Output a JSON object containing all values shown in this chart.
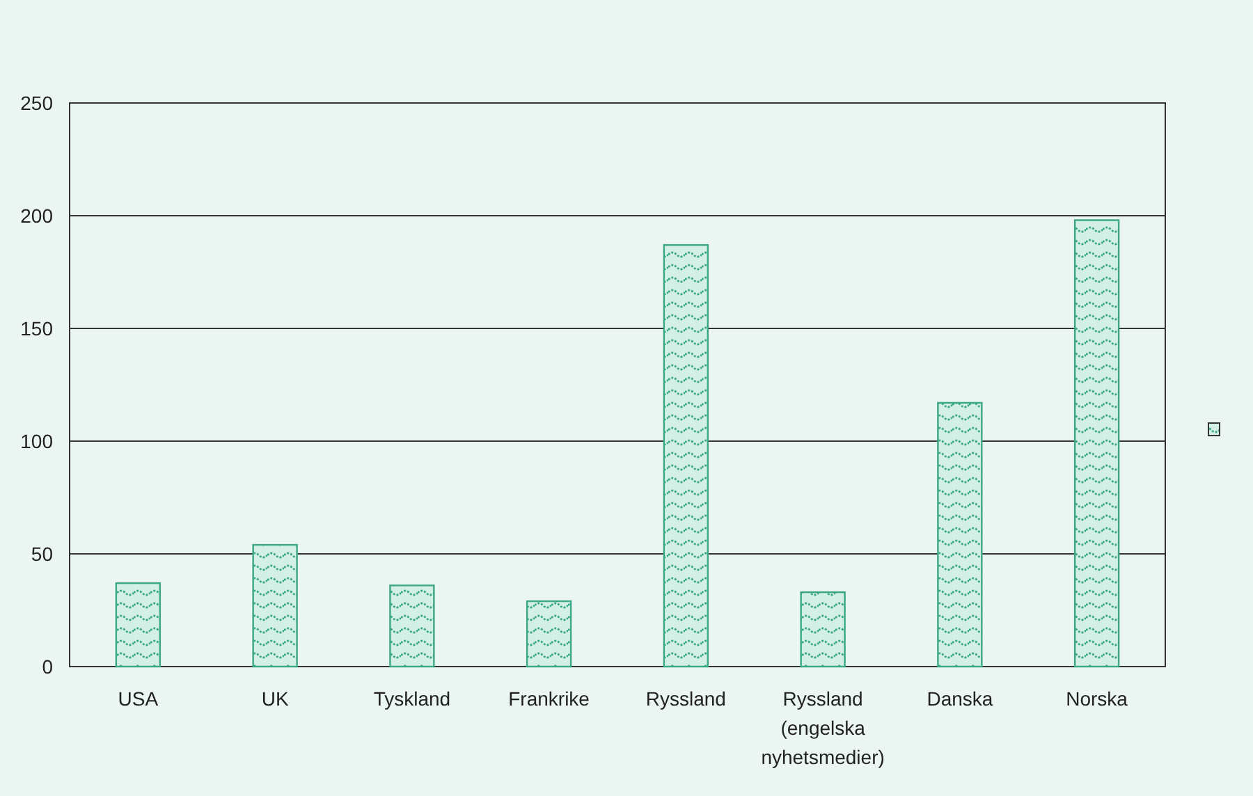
{
  "chart_data": {
    "type": "bar",
    "categories": [
      "USA",
      "UK",
      "Tyskland",
      "Frankrike",
      "Ryssland",
      "Ryssland (engelska nyhetsmedier)",
      "Danska",
      "Norska"
    ],
    "values": [
      37,
      54,
      36,
      29,
      187,
      33,
      117,
      198
    ],
    "color": "#3aa887",
    "ylim": [
      0,
      250
    ],
    "yticks": [
      0,
      50,
      100,
      150,
      200,
      250
    ],
    "grid": "y"
  }
}
